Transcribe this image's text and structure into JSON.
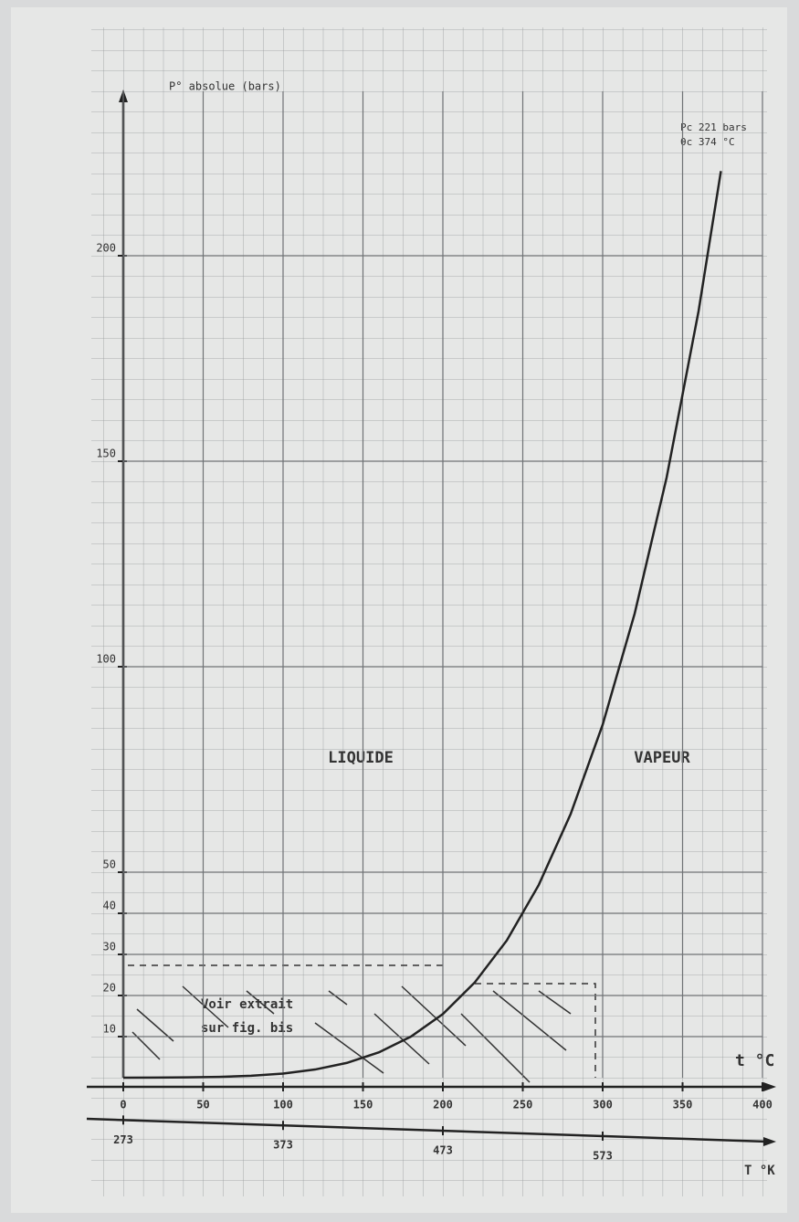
{
  "chart_data": {
    "type": "line",
    "y_label": "P° absolue (bars)",
    "x_label": "t °C",
    "x2_label": "T °K",
    "x": [
      0,
      20,
      40,
      60,
      80,
      100,
      120,
      140,
      160,
      180,
      200,
      220,
      240,
      260,
      280,
      300,
      320,
      340,
      360,
      374
    ],
    "series": [
      {
        "color": "#222222",
        "values": [
          0.006,
          0.023,
          0.074,
          0.2,
          0.47,
          1.01,
          1.99,
          3.61,
          6.18,
          10.0,
          15.5,
          23.2,
          33.4,
          46.9,
          64.2,
          85.9,
          112.9,
          146.0,
          186.5,
          220.6
        ]
      }
    ],
    "xlim": [
      0,
      400
    ],
    "xticks": [
      0,
      50,
      100,
      150,
      200,
      250,
      300,
      350,
      400
    ],
    "x2lim": [
      273,
      673
    ],
    "x2ticks": [
      273,
      373,
      473,
      573
    ],
    "ylim": [
      0,
      240
    ],
    "yticks": [
      10,
      20,
      30,
      40,
      50,
      100,
      150,
      200
    ],
    "grid": true,
    "region_labels": [
      "LIQUIDE",
      "VAPEUR"
    ],
    "note": [
      "Voir extrait",
      "sur fig. bis"
    ],
    "critical_point": [
      "Pc 221 bars",
      "θc 374 °C"
    ]
  }
}
